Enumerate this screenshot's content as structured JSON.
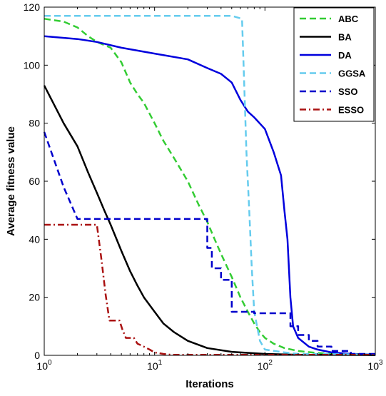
{
  "chart_data": {
    "type": "line",
    "xscale": "log",
    "xlim": [
      1,
      1000
    ],
    "ylim": [
      0,
      120
    ],
    "xlabel": "Iterations",
    "ylabel": "Average fitness value",
    "grid": false,
    "legend_position": "top-right",
    "y_ticks": [
      0,
      20,
      40,
      60,
      80,
      100,
      120
    ],
    "x_ticks": [
      {
        "value": 1,
        "base": "10",
        "exp": "0"
      },
      {
        "value": 10,
        "base": "10",
        "exp": "1"
      },
      {
        "value": 100,
        "base": "10",
        "exp": "2"
      },
      {
        "value": 1000,
        "base": "10",
        "exp": "3"
      }
    ],
    "series": [
      {
        "name": "ABC",
        "color": "#33cc33",
        "style": "dashed",
        "width": 2.5,
        "points": [
          [
            1,
            116
          ],
          [
            1.5,
            115
          ],
          [
            2,
            113
          ],
          [
            2.5,
            110
          ],
          [
            3,
            108
          ],
          [
            4,
            106
          ],
          [
            5,
            101
          ],
          [
            6,
            94
          ],
          [
            7,
            90
          ],
          [
            8,
            87
          ],
          [
            10,
            80
          ],
          [
            12,
            74
          ],
          [
            15,
            68
          ],
          [
            20,
            60
          ],
          [
            25,
            52
          ],
          [
            30,
            46
          ],
          [
            35,
            40
          ],
          [
            40,
            35
          ],
          [
            50,
            27
          ],
          [
            60,
            20
          ],
          [
            70,
            15
          ],
          [
            80,
            11
          ],
          [
            90,
            8
          ],
          [
            100,
            6
          ],
          [
            120,
            4
          ],
          [
            150,
            2.5
          ],
          [
            200,
            1.5
          ],
          [
            300,
            0.8
          ],
          [
            500,
            0.3
          ],
          [
            1000,
            0.1
          ]
        ]
      },
      {
        "name": "BA",
        "color": "#000000",
        "style": "solid",
        "width": 2.5,
        "points": [
          [
            1,
            93
          ],
          [
            1.5,
            80
          ],
          [
            2,
            72
          ],
          [
            2.5,
            63
          ],
          [
            3,
            56
          ],
          [
            3.5,
            50
          ],
          [
            4,
            45
          ],
          [
            5,
            36
          ],
          [
            6,
            29
          ],
          [
            7,
            24
          ],
          [
            8,
            20
          ],
          [
            10,
            15
          ],
          [
            12,
            11
          ],
          [
            15,
            8
          ],
          [
            20,
            5
          ],
          [
            30,
            2.5
          ],
          [
            50,
            1.2
          ],
          [
            100,
            0.5
          ],
          [
            200,
            0.2
          ],
          [
            1000,
            0.1
          ]
        ]
      },
      {
        "name": "DA",
        "color": "#0000dd",
        "style": "solid",
        "width": 2.5,
        "points": [
          [
            1,
            110
          ],
          [
            2,
            109
          ],
          [
            3,
            108
          ],
          [
            5,
            106
          ],
          [
            10,
            104
          ],
          [
            20,
            102
          ],
          [
            30,
            99
          ],
          [
            40,
            97
          ],
          [
            50,
            94
          ],
          [
            60,
            88
          ],
          [
            70,
            84
          ],
          [
            80,
            82
          ],
          [
            100,
            78
          ],
          [
            120,
            70
          ],
          [
            140,
            62
          ],
          [
            150,
            50
          ],
          [
            160,
            40
          ],
          [
            170,
            20
          ],
          [
            180,
            10
          ],
          [
            200,
            6
          ],
          [
            250,
            3
          ],
          [
            300,
            2
          ],
          [
            400,
            1
          ],
          [
            600,
            0.5
          ],
          [
            1000,
            0.3
          ]
        ]
      },
      {
        "name": "GGSA",
        "color": "#66ccee",
        "style": "dashed",
        "width": 2.5,
        "points": [
          [
            1,
            117
          ],
          [
            10,
            117
          ],
          [
            30,
            117
          ],
          [
            50,
            117
          ],
          [
            62,
            116
          ],
          [
            64,
            100
          ],
          [
            66,
            85
          ],
          [
            68,
            70
          ],
          [
            72,
            50
          ],
          [
            76,
            30
          ],
          [
            80,
            15
          ],
          [
            90,
            5
          ],
          [
            100,
            2
          ],
          [
            150,
            1
          ],
          [
            200,
            0.5
          ],
          [
            1000,
            0.3
          ]
        ]
      },
      {
        "name": "SSO",
        "color": "#0000cc",
        "style": "dashed",
        "width": 2.5,
        "points": [
          [
            1,
            77
          ],
          [
            1.5,
            58
          ],
          [
            2,
            47
          ],
          [
            30,
            47
          ],
          [
            30,
            37
          ],
          [
            33,
            37
          ],
          [
            33,
            30
          ],
          [
            40,
            30
          ],
          [
            40,
            26
          ],
          [
            50,
            26
          ],
          [
            50,
            15
          ],
          [
            80,
            15
          ],
          [
            80,
            14.5
          ],
          [
            170,
            14.5
          ],
          [
            170,
            10
          ],
          [
            200,
            10
          ],
          [
            200,
            7
          ],
          [
            250,
            7
          ],
          [
            250,
            5
          ],
          [
            300,
            5
          ],
          [
            300,
            3
          ],
          [
            400,
            3
          ],
          [
            400,
            1.5
          ],
          [
            600,
            1.5
          ],
          [
            600,
            0.5
          ],
          [
            1000,
            0.5
          ]
        ]
      },
      {
        "name": "ESSO",
        "color": "#aa1111",
        "style": "dashdot",
        "width": 2.5,
        "points": [
          [
            1,
            45
          ],
          [
            3,
            45
          ],
          [
            3.3,
            33
          ],
          [
            3.6,
            21
          ],
          [
            3.9,
            12
          ],
          [
            4.8,
            12
          ],
          [
            5.1,
            9
          ],
          [
            5.5,
            6
          ],
          [
            6.5,
            6
          ],
          [
            7,
            4
          ],
          [
            8,
            3
          ],
          [
            9,
            2
          ],
          [
            10,
            1
          ],
          [
            12,
            0.5
          ],
          [
            14,
            0.2
          ],
          [
            1000,
            0.2
          ]
        ]
      }
    ]
  }
}
